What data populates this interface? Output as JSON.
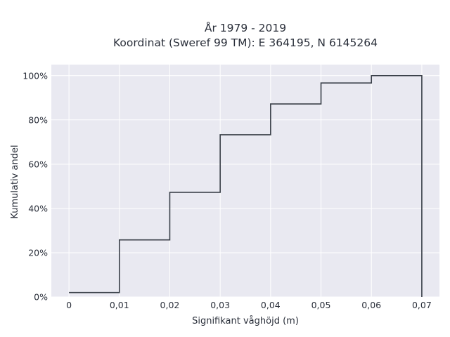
{
  "chart_data": {
    "type": "line",
    "step": "post",
    "title_lines": [
      "År 1979 - 2019",
      "Koordinat (Sweref 99 TM): E 364195, N 6145264"
    ],
    "xlabel": "Signifikant våghöjd (m)",
    "ylabel": "Kumulativ andel",
    "x": [
      0,
      0.01,
      0.02,
      0.03,
      0.04,
      0.05,
      0.06,
      0.07,
      0.07
    ],
    "y": [
      0.02,
      0.258,
      0.473,
      0.733,
      0.872,
      0.967,
      1.0,
      1.0,
      0.0
    ],
    "xlim": [
      -0.0035,
      0.0735
    ],
    "ylim": [
      0,
      1.05
    ],
    "x_ticks": [
      0,
      0.01,
      0.02,
      0.03,
      0.04,
      0.05,
      0.06,
      0.07
    ],
    "x_tick_labels": [
      "0",
      "0,01",
      "0,02",
      "0,03",
      "0,04",
      "0,05",
      "0,06",
      "0,07"
    ],
    "y_ticks": [
      0,
      0.2,
      0.4,
      0.6,
      0.8,
      1.0
    ],
    "y_tick_labels": [
      "0%",
      "20%",
      "40%",
      "60%",
      "80%",
      "100%"
    ],
    "grid": true,
    "colors": {
      "line": "#3a4049",
      "background": "#e9e9f1",
      "grid": "#ffffff"
    }
  }
}
